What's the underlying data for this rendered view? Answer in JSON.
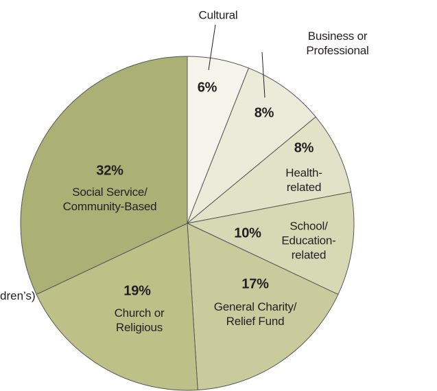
{
  "chart_data": {
    "type": "pie",
    "categories": [
      "Cultural",
      "Business or Professional",
      "Health-\nrelated",
      "School/\nEducation-\nrelated",
      "General Charity/\nRelief Fund",
      "Church or\nReligious",
      "Social Service/\nCommunity-Based"
    ],
    "values": [
      6,
      8,
      8,
      10,
      17,
      19,
      32
    ],
    "value_labels": [
      "6%",
      "8%",
      "8%",
      "10%",
      "17%",
      "19%",
      "32%"
    ],
    "colors": [
      "#f4f4ea",
      "#ebebd9",
      "#e1e2c7",
      "#d7d9b5",
      "#c9cb9d",
      "#bdc188",
      "#abb175"
    ],
    "annotations": [
      "dren’s)"
    ]
  }
}
